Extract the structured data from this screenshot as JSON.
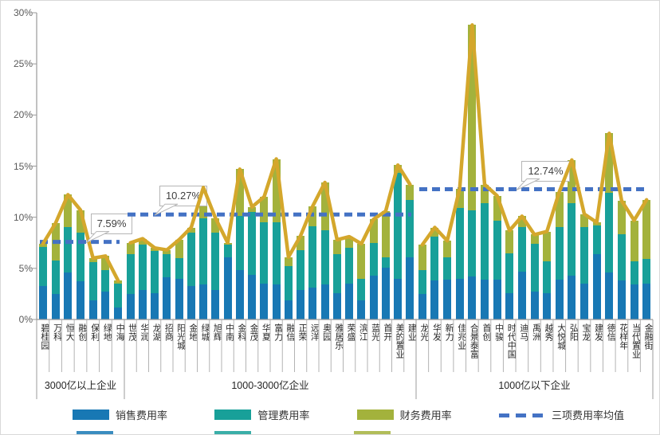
{
  "chart": {
    "y_ticks": [
      "30%",
      "25%",
      "20%",
      "15%",
      "10%",
      "5%",
      "0%"
    ],
    "y_max": 30,
    "colors": {
      "sales": "#1878B4",
      "admin": "#18A099",
      "finance": "#A3B23C",
      "total_line": "#D4A72C",
      "average_line": "#4472C4",
      "axis": "#999999",
      "tick_label": "#595959"
    },
    "legend": [
      {
        "key": "sales",
        "label": "销售费用率",
        "swatch": "bar"
      },
      {
        "key": "admin",
        "label": "管理费用率",
        "swatch": "bar"
      },
      {
        "key": "finance",
        "label": "财务费用率",
        "swatch": "bar"
      },
      {
        "key": "average",
        "label": "三项费用率均值",
        "swatch": "dashed-line"
      }
    ],
    "chart_data": {
      "type": "bar",
      "subtype": "stacked-bars-with-total-line-and-group-average",
      "series_labels": [
        "销售费用率",
        "管理费用率",
        "财务费用率"
      ],
      "groups": [
        {
          "label": "3000亿以上企业",
          "average": 7.59,
          "callout": "7.59%",
          "companies": [
            "碧桂园",
            "万科",
            "恒大",
            "融创",
            "保利",
            "绿地",
            "中海"
          ],
          "sales": [
            3.3,
            2.5,
            4.6,
            3.7,
            1.9,
            2.7,
            1.2
          ],
          "admin": [
            3.8,
            3.3,
            4.4,
            4.8,
            3.7,
            2.1,
            2.3
          ],
          "finance": [
            0.3,
            3.6,
            3.2,
            2.2,
            0.4,
            1.4,
            0.3
          ]
        },
        {
          "label": "1000-3000亿企业",
          "average": 10.27,
          "callout": "10.27%",
          "companies": [
            "世茂",
            "华润",
            "龙湖",
            "招商",
            "阳光城",
            "金地",
            "绿城",
            "旭辉",
            "中南",
            "金科",
            "金茂",
            "华夏",
            "富力",
            "融信",
            "正荣",
            "远洋",
            "奥园",
            "雅居乐",
            "荣盛",
            "滨江",
            "蓝光",
            "首开",
            "美的置业",
            "建业"
          ],
          "sales": [
            2.5,
            2.9,
            2.6,
            4.1,
            4.0,
            3.3,
            3.4,
            2.9,
            6.1,
            4.8,
            4.4,
            3.5,
            3.4,
            1.9,
            2.9,
            3.1,
            3.4,
            2.6,
            3.5,
            1.9,
            4.3,
            5.1,
            4.0,
            6.1
          ],
          "admin": [
            3.9,
            4.4,
            4.1,
            2.3,
            2.0,
            5.2,
            6.5,
            5.6,
            1.2,
            5.3,
            6.1,
            6.0,
            6.1,
            3.3,
            3.9,
            6.0,
            5.3,
            3.8,
            3.5,
            2.1,
            3.2,
            1.0,
            10.3,
            5.6
          ],
          "finance": [
            1.1,
            0.6,
            0.3,
            0.4,
            1.8,
            0.5,
            3.0,
            1.4,
            0.2,
            4.6,
            0.5,
            2.5,
            6.2,
            0.9,
            1.4,
            2.0,
            4.7,
            1.4,
            1.1,
            3.4,
            2.3,
            4.5,
            0.8,
            1.5
          ]
        },
        {
          "label": "1000亿以下企业",
          "average": 12.74,
          "callout": "12.74%",
          "companies": [
            "龙光",
            "华发",
            "新力",
            "佳兆业",
            "合景泰富",
            "首创",
            "中骏",
            "时代中国",
            "迪马",
            "禹洲",
            "越秀",
            "大悦城",
            "弘阳",
            "宝龙",
            "建发",
            "德信",
            "花样年",
            "当代置业",
            "金融街"
          ],
          "sales": [
            2.5,
            3.8,
            3.9,
            4.0,
            4.2,
            3.9,
            3.9,
            2.6,
            4.7,
            2.7,
            2.6,
            3.9,
            4.3,
            3.5,
            6.4,
            4.6,
            3.8,
            3.4,
            3.5
          ],
          "admin": [
            2.3,
            4.3,
            2.2,
            6.9,
            6.5,
            7.5,
            5.8,
            3.9,
            4.3,
            4.7,
            3.1,
            5.1,
            7.1,
            5.5,
            2.8,
            7.8,
            4.5,
            2.3,
            2.4
          ],
          "finance": [
            2.5,
            0.9,
            1.6,
            1.9,
            18.1,
            1.8,
            2.4,
            2.2,
            1.1,
            0.9,
            2.9,
            3.5,
            4.2,
            1.3,
            0.3,
            5.8,
            3.3,
            4.0,
            5.8
          ]
        }
      ]
    }
  }
}
